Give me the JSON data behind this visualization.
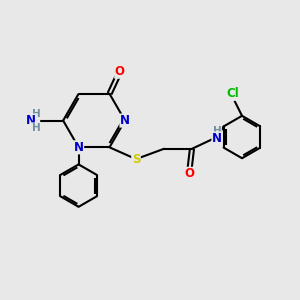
{
  "bg_color": "#e8e8e8",
  "bond_color": "#000000",
  "atom_colors": {
    "O": "#ff0000",
    "N": "#0000cc",
    "S": "#cccc00",
    "Cl": "#00bb00",
    "C": "#000000",
    "H": "#7090a0"
  },
  "font_size_atom": 8.5,
  "figsize": [
    3.0,
    3.0
  ],
  "dpi": 100
}
